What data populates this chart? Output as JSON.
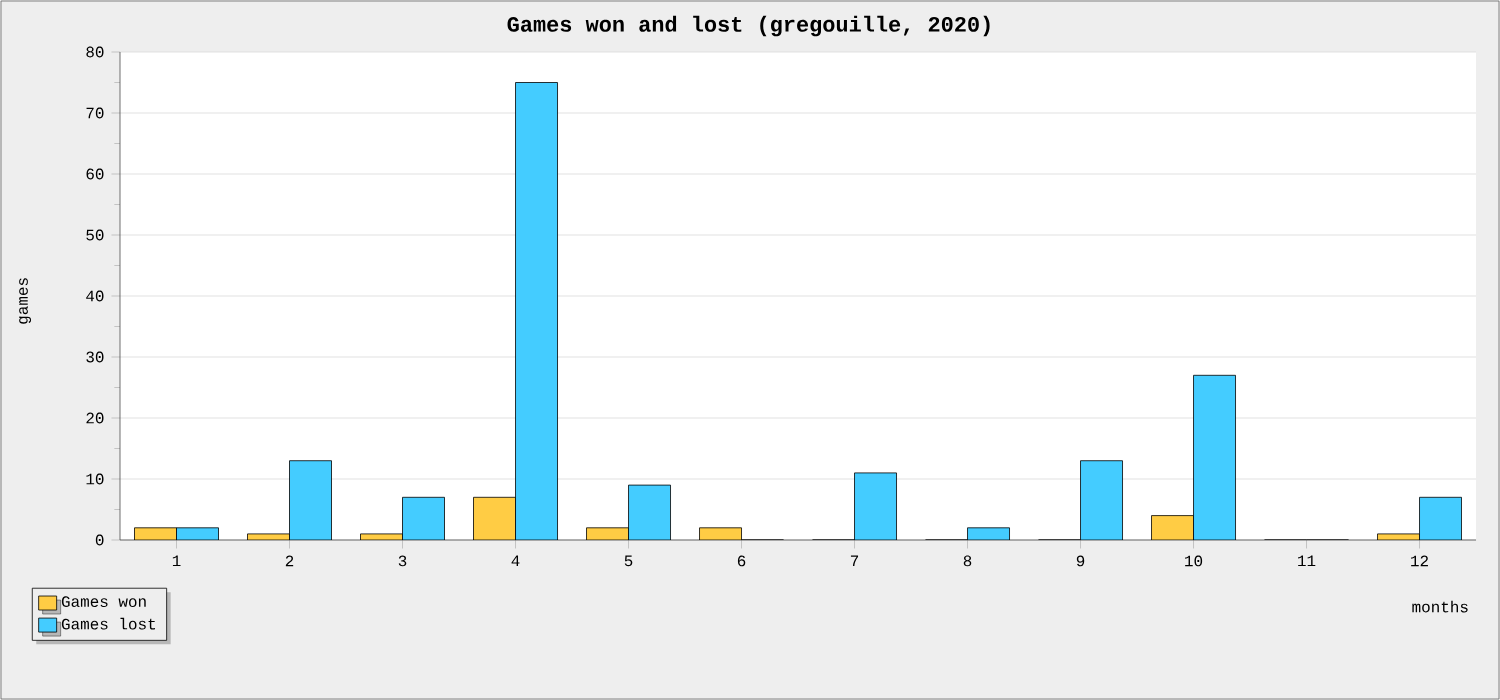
{
  "chart_data": {
    "type": "bar",
    "title": "Games won and lost (gregouille, 2020)",
    "xlabel": "months",
    "ylabel": "games",
    "categories": [
      "1",
      "2",
      "3",
      "4",
      "5",
      "6",
      "7",
      "8",
      "9",
      "10",
      "11",
      "12"
    ],
    "series": [
      {
        "name": "Games won",
        "color": "#ffcc44",
        "values": [
          2,
          1,
          1,
          7,
          2,
          2,
          0,
          0,
          0,
          4,
          0,
          1
        ]
      },
      {
        "name": "Games lost",
        "color": "#44ccff",
        "values": [
          2,
          13,
          7,
          75,
          9,
          0,
          11,
          2,
          13,
          27,
          0,
          7
        ]
      }
    ],
    "ylim": [
      0,
      80
    ],
    "yticks": [
      0,
      10,
      20,
      30,
      40,
      50,
      60,
      70,
      80
    ],
    "grid": "y",
    "legend": "bottom left"
  }
}
